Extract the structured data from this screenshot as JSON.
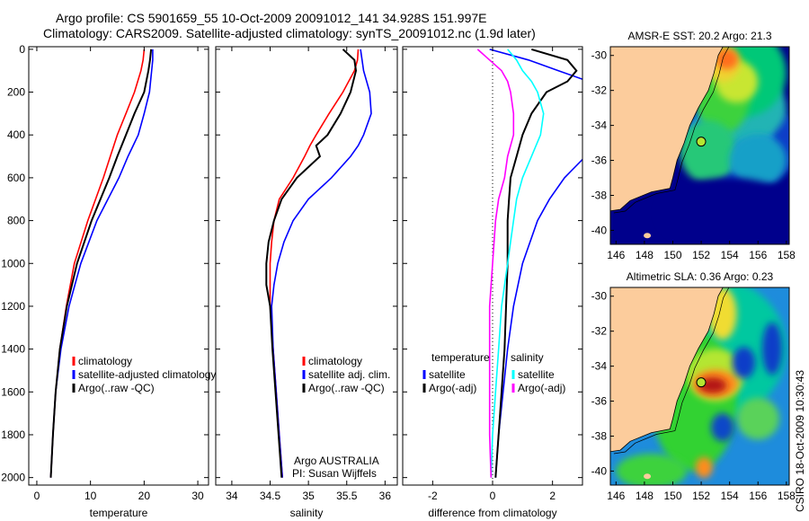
{
  "title": {
    "line1": "Argo profile: CS 5901659_55 10-Oct-2009 20091012_141 34.928S 151.997E",
    "line2": "Climatology: CARS2009. Satellite-adjusted climatology: synTS_20091012.nc (1.9d later)"
  },
  "stamp": "CSIRO 18-Oct-2009 10:30:43",
  "credits": {
    "line1": "Argo AUSTRALIA",
    "line2": "PI: Susan Wijffels"
  },
  "colors": {
    "red": "#ff0000",
    "blue": "#0000ff",
    "black": "#000000",
    "cyan": "#00ffff",
    "magenta": "#ff00ff",
    "land": "#fccc9c",
    "deep": "#00008c"
  },
  "chart_data": [
    {
      "type": "line",
      "id": "temp",
      "xlabel": "temperature",
      "ylabel": "",
      "xlim": [
        -1.5,
        32
      ],
      "ylim": [
        2035,
        -12
      ],
      "xticks": [
        0,
        10,
        20,
        30
      ],
      "yticks": [
        0,
        200,
        400,
        600,
        800,
        1000,
        1200,
        1400,
        1600,
        1800,
        2000
      ],
      "legend": {
        "placement": "lower-right",
        "entries": [
          "climatology",
          "satellite-adjusted climatology",
          "Argo(..raw -QC)"
        ]
      },
      "depth": [
        0,
        50,
        100,
        200,
        300,
        400,
        500,
        600,
        800,
        1000,
        1200,
        1400,
        1600,
        1800,
        2000
      ],
      "series": [
        {
          "name": "climatology",
          "color": "red",
          "values": [
            20.0,
            19.8,
            19.4,
            18.2,
            16.6,
            15.0,
            13.7,
            12.4,
            9.5,
            7.0,
            5.5,
            4.3,
            3.5,
            3.0,
            2.6
          ]
        },
        {
          "name": "satellite-adjusted climatology",
          "color": "blue",
          "values": [
            21.6,
            21.6,
            21.4,
            21.0,
            20.0,
            18.9,
            17.0,
            15.3,
            11.2,
            8.2,
            6.0,
            4.5,
            3.5,
            3.0,
            2.6
          ]
        },
        {
          "name": "Argo(..raw -QC)",
          "color": "black",
          "values": [
            21.3,
            21.1,
            20.8,
            20.0,
            18.2,
            16.6,
            15.0,
            13.5,
            10.2,
            7.5,
            5.6,
            4.3,
            3.5,
            3.0,
            2.6
          ]
        }
      ]
    },
    {
      "type": "line",
      "id": "sal",
      "xlabel": "salinity",
      "ylabel": "",
      "xlim": [
        33.79,
        36.16
      ],
      "ylim": [
        2035,
        -12
      ],
      "xticks": [
        34,
        34.5,
        35,
        35.5,
        36
      ],
      "yticks": [],
      "legend": {
        "placement": "lower-right",
        "entries": [
          "climatology",
          "satellite adj. clim.",
          "Argo(..raw -QC)"
        ]
      },
      "depth": [
        0,
        50,
        100,
        200,
        300,
        400,
        450,
        500,
        600,
        700,
        800,
        900,
        1000,
        1100,
        1200,
        1400,
        1600,
        1800,
        2000
      ],
      "series": [
        {
          "name": "climatology",
          "color": "red",
          "values": [
            35.65,
            35.64,
            35.6,
            35.45,
            35.27,
            35.1,
            35.02,
            34.95,
            34.8,
            34.62,
            34.55,
            34.52,
            34.5,
            34.5,
            34.5,
            34.54,
            34.58,
            34.62,
            34.66
          ]
        },
        {
          "name": "satellite adj. clim.",
          "color": "blue",
          "values": [
            35.68,
            35.7,
            35.72,
            35.8,
            35.82,
            35.72,
            35.65,
            35.55,
            35.3,
            35.0,
            34.8,
            34.68,
            34.6,
            34.55,
            34.52,
            34.54,
            34.58,
            34.62,
            34.66
          ]
        },
        {
          "name": "Argo(..raw -QC)",
          "color": "black",
          "values": [
            35.45,
            35.6,
            35.62,
            35.55,
            35.42,
            35.25,
            35.1,
            35.15,
            34.85,
            34.65,
            34.55,
            34.48,
            34.45,
            34.45,
            34.5,
            34.53,
            34.57,
            34.61,
            34.65
          ]
        }
      ]
    },
    {
      "type": "line",
      "id": "diff",
      "xlabel": "difference from climatology",
      "ylabel": "",
      "xlim": [
        -3,
        3
      ],
      "ylim": [
        2035,
        -12
      ],
      "xticks": [
        -2,
        0,
        2
      ],
      "yticks": [],
      "legend": {
        "placement": "lower-center",
        "group1": "temperature",
        "group2": "salinity",
        "entries": [
          "satellite",
          "Argo(-adj)",
          "satellite",
          "Argo(-adj)"
        ]
      },
      "depth": [
        0,
        50,
        100,
        150,
        200,
        300,
        400,
        500,
        600,
        700,
        800,
        1000,
        1200,
        1400,
        1600,
        1800,
        2000
      ],
      "series": [
        {
          "name": "temperature satellite",
          "color": "blue",
          "values": [
            -0.1,
            1.2,
            2.2,
            3.2,
            null,
            null,
            null,
            3.1,
            2.4,
            1.9,
            1.5,
            1.0,
            0.7,
            0.5,
            0.35,
            0.2,
            0.1
          ]
        },
        {
          "name": "temperature Argo(-adj)",
          "color": "black",
          "values": [
            1.3,
            2.5,
            2.8,
            2.5,
            1.8,
            1.3,
            1.0,
            0.8,
            0.6,
            0.55,
            0.5,
            0.5,
            0.45,
            0.4,
            0.3,
            0.2,
            0.1
          ]
        },
        {
          "name": "salinity satellite",
          "color": "cyan",
          "values": [
            0.5,
            0.8,
            1.0,
            1.3,
            1.5,
            1.7,
            1.6,
            1.3,
            1.0,
            0.8,
            0.7,
            0.5,
            0.3,
            0.2,
            0.1,
            0.0,
            -0.05
          ]
        },
        {
          "name": "salinity Argo(-adj)",
          "color": "magenta",
          "values": [
            -0.5,
            -0.1,
            0.3,
            0.5,
            0.6,
            0.7,
            0.7,
            0.5,
            0.4,
            0.2,
            0.1,
            0.0,
            -0.1,
            -0.1,
            -0.1,
            -0.1,
            -0.05
          ]
        }
      ]
    }
  ],
  "maps": [
    {
      "id": "sst",
      "title": "AMSR-E SST: 20.2  Argo: 21.3",
      "lonlim": [
        145.6,
        158.2
      ],
      "latlim": [
        -40.8,
        -29.5
      ],
      "xticks": [
        146,
        148,
        150,
        152,
        154,
        156,
        158
      ],
      "yticks": [
        -30,
        -32,
        -34,
        -36,
        -38,
        -40
      ],
      "marker": [
        151.997,
        -34.928
      ]
    },
    {
      "id": "sla",
      "title": "Altimetric SLA: 0.36  Argo: 0.23",
      "lonlim": [
        145.6,
        158.2
      ],
      "latlim": [
        -40.8,
        -29.5
      ],
      "xticks": [
        146,
        148,
        150,
        152,
        154,
        156,
        158
      ],
      "yticks": [
        -30,
        -32,
        -34,
        -36,
        -38,
        -40
      ],
      "marker": [
        151.997,
        -34.928
      ]
    }
  ]
}
